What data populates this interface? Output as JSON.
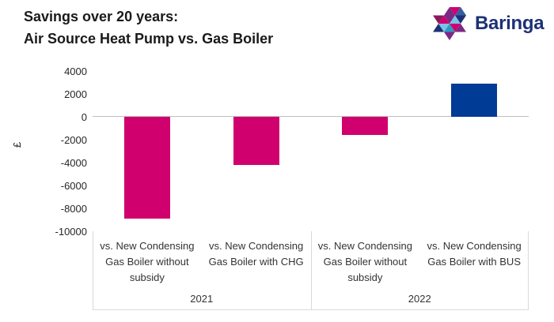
{
  "header": {
    "title_line1": "Savings over 20 years:",
    "title_line2": "Air Source Heat Pump vs. Gas Boiler"
  },
  "logo": {
    "text": "Baringa",
    "text_color": "#1D3176",
    "mark_colors": [
      "#7C2984",
      "#D0006E",
      "#365FA0",
      "#8A1A5C",
      "#D0006E",
      "#7C2984",
      "#7AC3E8",
      "#1D3176",
      "#1D3176",
      "#7AC3E8",
      "#2D9BC1",
      "#D0006E",
      "#7C2984",
      "#7C2984"
    ]
  },
  "chart_data": {
    "type": "bar",
    "title": "Savings over 20 years: Air Source Heat Pump vs. Gas Boiler",
    "ylabel": "£",
    "ylim": [
      -10000,
      4000
    ],
    "yticks": [
      4000,
      2000,
      0,
      -2000,
      -4000,
      -6000,
      -8000,
      -10000
    ],
    "grid": false,
    "legend": "none",
    "groups": [
      {
        "label": "2021",
        "bars": [
          {
            "category": "vs. New Condensing Gas Boiler without subsidy",
            "value": -8900,
            "color": "#D0006E"
          },
          {
            "category": "vs. New Condensing Gas Boiler with CHG",
            "value": -4200,
            "color": "#D0006E"
          }
        ]
      },
      {
        "label": "2022",
        "bars": [
          {
            "category": "vs. New Condensing Gas Boiler without subsidy",
            "value": -1600,
            "color": "#D0006E"
          },
          {
            "category": "vs. New Condensing Gas Boiler with BUS",
            "value": 2900,
            "color": "#003B95"
          }
        ]
      }
    ],
    "axis_colors": {
      "zero_line": "#BFBFBF",
      "divider": "#D9D9D9",
      "tick_text": "#262626",
      "category_text": "#333333"
    }
  }
}
